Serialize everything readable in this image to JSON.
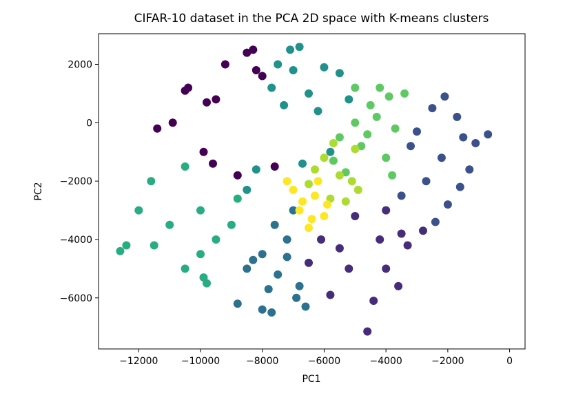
{
  "chart_data": {
    "type": "scatter",
    "title": "CIFAR-10 dataset in the PCA 2D space with K-means clusters",
    "xlabel": "PC1",
    "ylabel": "PC2",
    "xlim": [
      -13300,
      500
    ],
    "ylim": [
      -7750,
      3050
    ],
    "xticks": [
      -12000,
      -10000,
      -8000,
      -6000,
      -4000,
      -2000,
      0
    ],
    "xtick_labels": [
      "−12000",
      "−10000",
      "−8000",
      "−6000",
      "−4000",
      "−2000",
      "0"
    ],
    "yticks": [
      2000,
      0,
      -2000,
      -4000,
      -6000
    ],
    "ytick_labels": [
      "2000",
      "0",
      "−2000",
      "−4000",
      "−6000"
    ],
    "grid": false,
    "legend": "none",
    "colormap": "viridis",
    "series": [
      {
        "color": "#440154",
        "values": [
          [
            -9800,
            700
          ],
          [
            -8500,
            2400
          ],
          [
            -8300,
            2500
          ],
          [
            -10500,
            1100
          ],
          [
            -10400,
            1200
          ],
          [
            -10900,
            0
          ],
          [
            -11400,
            -200
          ],
          [
            -9900,
            -1000
          ],
          [
            -8800,
            -1800
          ],
          [
            -9600,
            -1400
          ],
          [
            -7600,
            -1500
          ],
          [
            -8200,
            1800
          ],
          [
            -9200,
            2000
          ],
          [
            -8000,
            1600
          ],
          [
            -9500,
            800
          ]
        ]
      },
      {
        "color": "#472c7a",
        "values": [
          [
            -4200,
            -4000
          ],
          [
            -5000,
            -3200
          ],
          [
            -3500,
            -3800
          ],
          [
            -4000,
            -5000
          ],
          [
            -5200,
            -5000
          ],
          [
            -6100,
            -4000
          ],
          [
            -6500,
            -4800
          ],
          [
            -4600,
            -7150
          ],
          [
            -4400,
            -6100
          ],
          [
            -3300,
            -4200
          ],
          [
            -2800,
            -3700
          ],
          [
            -5800,
            -5900
          ],
          [
            -3600,
            -5600
          ],
          [
            -4000,
            -3000
          ],
          [
            -5500,
            -4300
          ]
        ]
      },
      {
        "color": "#3b518b",
        "values": [
          [
            -2200,
            -1200
          ],
          [
            -1500,
            -500
          ],
          [
            -2500,
            500
          ],
          [
            -2100,
            900
          ],
          [
            -3200,
            -800
          ],
          [
            -2700,
            -2000
          ],
          [
            -1600,
            -2200
          ],
          [
            -2000,
            -2800
          ],
          [
            -1100,
            -700
          ],
          [
            -3500,
            -2500
          ],
          [
            -700,
            -400
          ],
          [
            -1700,
            200
          ],
          [
            -3000,
            -300
          ],
          [
            -2400,
            -3400
          ],
          [
            -1300,
            -1600
          ]
        ]
      },
      {
        "color": "#2c718e",
        "values": [
          [
            -7200,
            -4000
          ],
          [
            -8000,
            -4500
          ],
          [
            -7500,
            -5200
          ],
          [
            -7700,
            -6500
          ],
          [
            -8000,
            -6400
          ],
          [
            -8800,
            -6200
          ],
          [
            -6900,
            -6000
          ],
          [
            -7000,
            -3000
          ],
          [
            -7600,
            -3500
          ],
          [
            -6800,
            -5600
          ],
          [
            -8500,
            -5000
          ],
          [
            -7200,
            -4600
          ],
          [
            -6600,
            -6300
          ],
          [
            -7800,
            -5700
          ],
          [
            -8300,
            -4700
          ]
        ]
      },
      {
        "color": "#21918c",
        "values": [
          [
            -7000,
            1800
          ],
          [
            -6500,
            1000
          ],
          [
            -7500,
            2000
          ],
          [
            -6000,
            1900
          ],
          [
            -5200,
            800
          ],
          [
            -6800,
            2600
          ],
          [
            -7100,
            2500
          ],
          [
            -5500,
            1700
          ],
          [
            -6200,
            400
          ],
          [
            -7300,
            600
          ],
          [
            -5800,
            -1000
          ],
          [
            -8500,
            -2300
          ],
          [
            -8200,
            -1600
          ],
          [
            -6700,
            -1400
          ],
          [
            -7700,
            1200
          ]
        ]
      },
      {
        "color": "#27ad81",
        "values": [
          [
            -10000,
            -3000
          ],
          [
            -11000,
            -3500
          ],
          [
            -12000,
            -3000
          ],
          [
            -12600,
            -4400
          ],
          [
            -11600,
            -2000
          ],
          [
            -10500,
            -1500
          ],
          [
            -9000,
            -3500
          ],
          [
            -10500,
            -5000
          ],
          [
            -9800,
            -5500
          ],
          [
            -9900,
            -5300
          ],
          [
            -10000,
            -4500
          ],
          [
            -11500,
            -4200
          ],
          [
            -8800,
            -2600
          ],
          [
            -9500,
            -4000
          ],
          [
            -12400,
            -4200
          ]
        ]
      },
      {
        "color": "#5ec962",
        "values": [
          [
            -4800,
            -800
          ],
          [
            -4300,
            200
          ],
          [
            -3900,
            900
          ],
          [
            -3400,
            1000
          ],
          [
            -5000,
            1200
          ],
          [
            -4200,
            1200
          ],
          [
            -5300,
            -1700
          ],
          [
            -4600,
            -400
          ],
          [
            -3800,
            -1800
          ],
          [
            -5500,
            -500
          ],
          [
            -4000,
            -1200
          ],
          [
            -5000,
            0
          ],
          [
            -4500,
            600
          ],
          [
            -3700,
            -200
          ],
          [
            -5700,
            -1300
          ]
        ]
      },
      {
        "color": "#addc30",
        "values": [
          [
            -6000,
            -1200
          ],
          [
            -5500,
            -1800
          ],
          [
            -5100,
            -2000
          ],
          [
            -5800,
            -2600
          ],
          [
            -6300,
            -1600
          ],
          [
            -5000,
            -900
          ],
          [
            -4900,
            -2300
          ],
          [
            -6500,
            -2100
          ],
          [
            -5700,
            -700
          ],
          [
            -5300,
            -2700
          ]
        ]
      },
      {
        "color": "#fde725",
        "values": [
          [
            -7000,
            -2300
          ],
          [
            -6300,
            -2500
          ],
          [
            -6800,
            -3000
          ],
          [
            -6000,
            -3200
          ],
          [
            -6500,
            -3600
          ],
          [
            -7200,
            -2000
          ],
          [
            -6200,
            -2000
          ],
          [
            -6700,
            -2700
          ],
          [
            -5900,
            -2800
          ],
          [
            -6400,
            -3300
          ]
        ]
      }
    ]
  }
}
